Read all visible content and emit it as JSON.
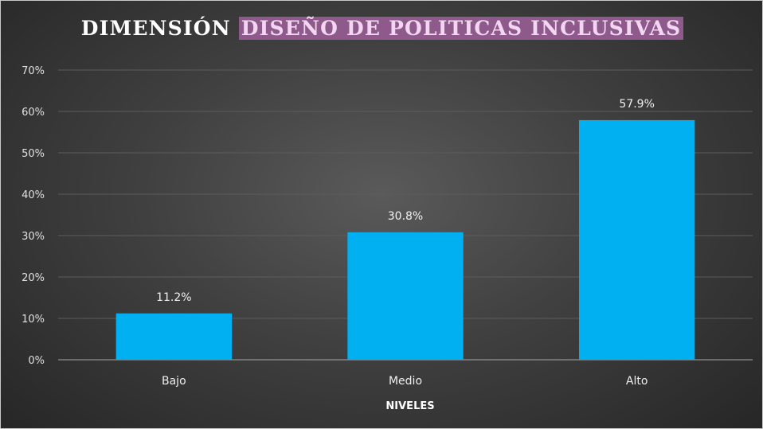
{
  "chart_data": {
    "type": "bar",
    "title_part1": "DIMENSIÓN",
    "title_part2": "DISEÑO DE POLITICAS INCLUSIVAS",
    "categories": [
      "Bajo",
      "Medio",
      "Alto"
    ],
    "values": [
      11.2,
      30.8,
      57.9
    ],
    "value_labels": [
      "11.2%",
      "30.8%",
      "57.9%"
    ],
    "xlabel": "NIVELES",
    "ylabel": "",
    "ylim": [
      0,
      70
    ],
    "yticks": [
      0,
      10,
      20,
      30,
      40,
      50,
      60,
      70
    ],
    "ytick_labels": [
      "0%",
      "10%",
      "20%",
      "30%",
      "40%",
      "50%",
      "60%",
      "70%"
    ],
    "grid": true,
    "legend": "none"
  },
  "colors": {
    "bar": "#00b0f0",
    "title_highlight_bg": "#8e5a8c",
    "title_highlight_text": "#f3d6f1",
    "background": "#404040",
    "gridline": "#5c5c5c",
    "axis": "#a6a6a6"
  }
}
